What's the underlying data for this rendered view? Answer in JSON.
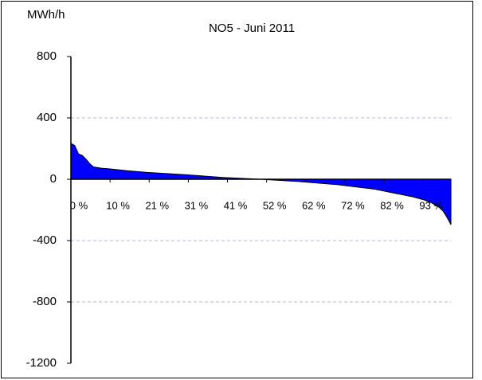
{
  "chart_data": {
    "type": "area",
    "title": "NO5 -  Juni 2011",
    "y_label": "MWh/h",
    "x": [
      0,
      1,
      2,
      3,
      4,
      5,
      6,
      8,
      10,
      15,
      20,
      30,
      40,
      50,
      52,
      60,
      70,
      80,
      85,
      90,
      93,
      95,
      97,
      98,
      99,
      100
    ],
    "series": [
      {
        "name": "NO5",
        "color": "#0000ff",
        "values": [
          234,
          220,
          165,
          155,
          130,
          100,
          80,
          72,
          68,
          55,
          45,
          30,
          12,
          0,
          -3,
          -15,
          -35,
          -65,
          -90,
          -115,
          -135,
          -155,
          -185,
          -210,
          -250,
          -296
        ]
      }
    ],
    "xlim": [
      0,
      100
    ],
    "xticks": [
      {
        "value": 0,
        "label": "0 %"
      },
      {
        "value": 10.3,
        "label": "10 %"
      },
      {
        "value": 20.6,
        "label": "21 %"
      },
      {
        "value": 30.9,
        "label": "31 %"
      },
      {
        "value": 41.2,
        "label": "41 %"
      },
      {
        "value": 51.5,
        "label": "52 %"
      },
      {
        "value": 61.8,
        "label": "62 %"
      },
      {
        "value": 72.1,
        "label": "72 %"
      },
      {
        "value": 82.4,
        "label": "82 %"
      },
      {
        "value": 92.7,
        "label": "93 %"
      }
    ],
    "ylim": [
      -1200,
      800
    ],
    "yticks": [
      -1200,
      -800,
      -400,
      0,
      400,
      800
    ],
    "grid": true
  }
}
